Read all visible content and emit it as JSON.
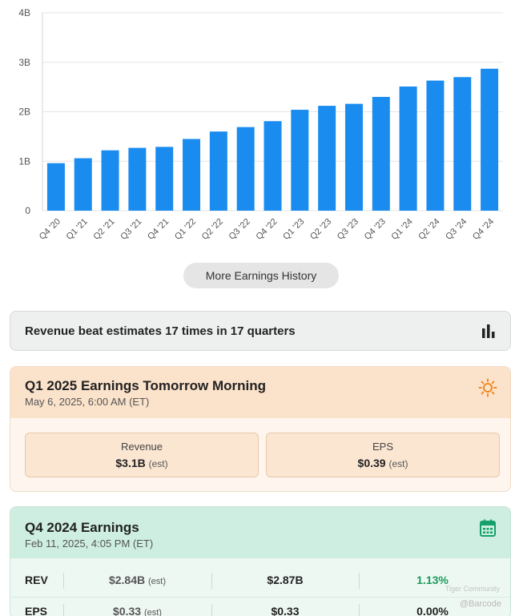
{
  "chart_data": {
    "type": "bar",
    "categories": [
      "Q4 '20",
      "Q1 '21",
      "Q2 '21",
      "Q3 '21",
      "Q4 '21",
      "Q1 '22",
      "Q2 '22",
      "Q3 '22",
      "Q4 '22",
      "Q1 '23",
      "Q2 '23",
      "Q3 '23",
      "Q4 '23",
      "Q1 '24",
      "Q2 '24",
      "Q3 '24",
      "Q4 '24"
    ],
    "values": [
      0.96,
      1.06,
      1.22,
      1.27,
      1.29,
      1.45,
      1.6,
      1.69,
      1.81,
      2.04,
      2.12,
      2.16,
      2.3,
      2.51,
      2.63,
      2.7,
      2.87
    ],
    "unit": "B",
    "ylim": [
      0,
      4
    ],
    "yticks": [
      "0",
      "1B",
      "2B",
      "3B",
      "4B"
    ],
    "bar_color": "#1a8cf0",
    "grid": true
  },
  "more_button": {
    "label": "More Earnings History"
  },
  "beat_card": {
    "text": "Revenue beat estimates 17 times in 17 quarters",
    "icon": "bar-chart-icon"
  },
  "upcoming": {
    "title": "Q1 2025 Earnings Tomorrow Morning",
    "date": "May 6, 2025, 6:00 AM (ET)",
    "icon": "sun-icon",
    "revenue_label": "Revenue",
    "revenue_value": "$3.1B",
    "eps_label": "EPS",
    "eps_value": "$0.39",
    "est_suffix": "(est)"
  },
  "q4": {
    "title": "Q4 2024 Earnings",
    "date": "Feb 11, 2025, 4:05 PM (ET)",
    "icon": "calendar-icon",
    "rows": [
      {
        "label": "REV",
        "estimate": "$2.84B",
        "actual": "$2.87B",
        "diff": "1.13%"
      },
      {
        "label": "EPS",
        "estimate": "$0.33",
        "actual": "$0.33",
        "diff": "0.00%"
      }
    ],
    "est_suffix": "(est)",
    "positive_color": "#1a9b5a"
  },
  "watermark": {
    "text": "@Barcode",
    "subtext": "Tiger Community"
  }
}
